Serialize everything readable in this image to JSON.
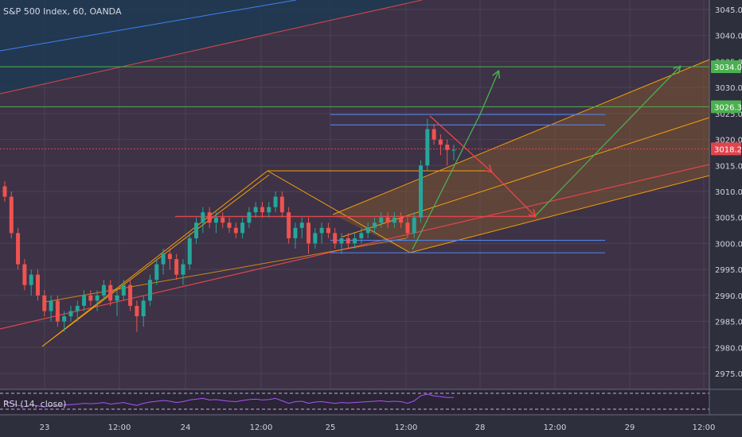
{
  "header": {
    "symbol_label": "S&P 500 Index, 60, OANDA"
  },
  "rsi": {
    "label": "RSI (14, close)"
  },
  "chart_data": {
    "type": "candlestick",
    "title": "S&P 500 Index, 60, OANDA",
    "y_ticks": [
      2975.0,
      2980.0,
      2985.0,
      2990.0,
      2995.0,
      3000.0,
      3005.0,
      3010.0,
      3015.0,
      3020.0,
      3025.0,
      3030.0,
      3035.0,
      3040.0,
      3045.0
    ],
    "ylim": [
      2971.0,
      3046.5
    ],
    "x_ticks": [
      "23",
      "12:00",
      "24",
      "12:00",
      "25",
      "12:00",
      "28",
      "12:00",
      "29",
      "12:00"
    ],
    "price_labels": [
      {
        "text": "3034.0",
        "value": 3034.0,
        "color": "#4caf50"
      },
      {
        "text": "3026.3",
        "value": 3026.3,
        "color": "#4caf50"
      },
      {
        "text": "3018.2",
        "value": 3018.2,
        "color": "#e0454e"
      }
    ],
    "candles": [
      [
        3011,
        3012,
        3008,
        3009
      ],
      [
        3009,
        3010,
        3001,
        3002
      ],
      [
        3002,
        3003,
        2995,
        2996
      ],
      [
        2996,
        2997,
        2991,
        2992
      ],
      [
        2992,
        2995,
        2990,
        2994
      ],
      [
        2994,
        2995,
        2989,
        2990
      ],
      [
        2990,
        2991,
        2986,
        2987
      ],
      [
        2987,
        2990,
        2985,
        2989
      ],
      [
        2989,
        2990,
        2984,
        2985
      ],
      [
        2985,
        2987,
        2983,
        2986
      ],
      [
        2986,
        2988,
        2985,
        2987
      ],
      [
        2987,
        2989,
        2985,
        2988
      ],
      [
        2988,
        2991,
        2987,
        2990
      ],
      [
        2990,
        2991,
        2988,
        2989
      ],
      [
        2989,
        2991,
        2987,
        2990
      ],
      [
        2990,
        2993,
        2989,
        2992
      ],
      [
        2992,
        2993,
        2988,
        2989
      ],
      [
        2989,
        2991,
        2986,
        2990
      ],
      [
        2990,
        2993,
        2989,
        2992
      ],
      [
        2992,
        2993,
        2987,
        2988
      ],
      [
        2988,
        2989,
        2983,
        2986
      ],
      [
        2986,
        2990,
        2984,
        2989
      ],
      [
        2989,
        2994,
        2988,
        2993
      ],
      [
        2993,
        2997,
        2992,
        2996
      ],
      [
        2996,
        2999,
        2994,
        2998
      ],
      [
        2998,
        2999,
        2995,
        2997
      ],
      [
        2997,
        2998,
        2993,
        2994
      ],
      [
        2994,
        2997,
        2992,
        2996
      ],
      [
        2996,
        3002,
        2995,
        3001
      ],
      [
        3001,
        3005,
        3000,
        3004
      ],
      [
        3004,
        3007,
        3002,
        3006
      ],
      [
        3006,
        3007,
        3003,
        3004
      ],
      [
        3004,
        3006,
        3002,
        3005
      ],
      [
        3005,
        3006,
        3003,
        3004
      ],
      [
        3004,
        3005,
        3002,
        3003
      ],
      [
        3003,
        3004,
        3001,
        3002
      ],
      [
        3002,
        3005,
        3001,
        3004
      ],
      [
        3004,
        3007,
        3003,
        3006
      ],
      [
        3006,
        3008,
        3005,
        3007
      ],
      [
        3007,
        3008,
        3005,
        3006
      ],
      [
        3006,
        3008,
        3005,
        3007
      ],
      [
        3007,
        3010,
        3006,
        3009
      ],
      [
        3009,
        3010,
        3005,
        3006
      ],
      [
        3006,
        3007,
        3000,
        3001
      ],
      [
        3001,
        3004,
        2999,
        3003
      ],
      [
        3003,
        3005,
        3001,
        3004
      ],
      [
        3004,
        3005,
        2998,
        3000
      ],
      [
        3000,
        3003,
        2999,
        3002
      ],
      [
        3002,
        3004,
        3000,
        3003
      ],
      [
        3003,
        3004,
        3001,
        3002
      ],
      [
        3002,
        3003,
        2999,
        3000
      ],
      [
        3000,
        3002,
        2998,
        3001
      ],
      [
        3001,
        3002,
        2999,
        3000
      ],
      [
        3000,
        3002,
        2999,
        3001
      ],
      [
        3001,
        3003,
        3000,
        3002
      ],
      [
        3002,
        3004,
        3001,
        3003
      ],
      [
        3003,
        3005,
        3002,
        3004
      ],
      [
        3004,
        3006,
        3003,
        3005
      ],
      [
        3005,
        3006,
        3003,
        3004
      ],
      [
        3004,
        3006,
        3003,
        3005
      ],
      [
        3005,
        3006,
        3003,
        3004
      ],
      [
        3004,
        3005,
        3001,
        3002
      ],
      [
        3002,
        3006,
        3001,
        3005
      ],
      [
        3005,
        3016,
        3004,
        3015
      ],
      [
        3015,
        3024,
        3014,
        3022
      ],
      [
        3022,
        3023,
        3019,
        3020
      ],
      [
        3020,
        3021,
        3017,
        3019
      ],
      [
        3019,
        3020,
        3015,
        3018
      ],
      [
        3018,
        3019,
        3016,
        3018
      ]
    ],
    "rsi_values": [
      55,
      50,
      45,
      42,
      46,
      44,
      41,
      45,
      43,
      46,
      47,
      48,
      50,
      49,
      50,
      52,
      48,
      50,
      52,
      48,
      45,
      50,
      53,
      55,
      57,
      55,
      52,
      54,
      58,
      60,
      62,
      58,
      59,
      57,
      55,
      54,
      57,
      59,
      60,
      58,
      59,
      62,
      56,
      50,
      54,
      55,
      50,
      53,
      54,
      52,
      50,
      52,
      51,
      52,
      53,
      54,
      55,
      56,
      54,
      55,
      54,
      50,
      56,
      68,
      72,
      68,
      66,
      64,
      64
    ],
    "levels": {
      "green_upper": 3034.0,
      "green_lower": 3026.3,
      "current": 3018.2
    }
  }
}
